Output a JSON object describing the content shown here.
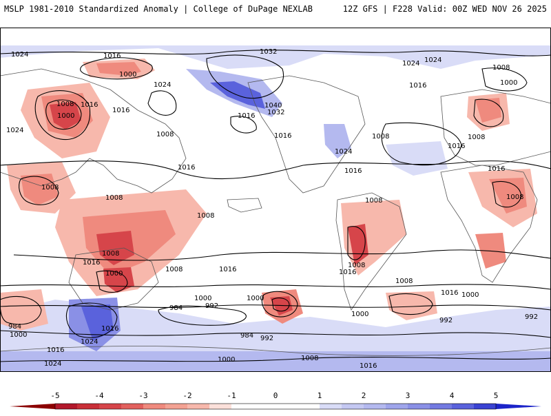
{
  "header": {
    "title": "MSLP 1981-2010 Standardized Anomaly | College of DuPage NEXLAB",
    "run_info": "12Z GFS | F228 Valid: 00Z WED NOV 26 2025"
  },
  "colors": {
    "neg5": "#b2182b",
    "neg4": "#d6454a",
    "neg3": "#ef8a7e",
    "neg2": "#f7b8ac",
    "neg1": "#fbe0da",
    "neutral": "#ffffff",
    "pos1": "#d9dcf7",
    "pos2": "#b4b9ef",
    "pos3": "#8a90e6",
    "pos4": "#5a62dc",
    "pos5": "#1c24c9",
    "contour": "#000000",
    "coast": "#555555"
  },
  "colorbar": {
    "ticks": [
      "-5",
      "-4",
      "-3",
      "-2",
      "-1",
      "0",
      "1",
      "2",
      "3",
      "4",
      "5"
    ]
  },
  "isobar_labels": [
    "1024",
    "1016",
    "1000",
    "1032",
    "1024",
    "1008",
    "1024",
    "1000",
    "1016",
    "1000",
    "1016",
    "1040",
    "1032",
    "1024",
    "1016",
    "1008",
    "1016",
    "1008",
    "1016",
    "1024",
    "1016",
    "1008",
    "1024",
    "1008",
    "1016",
    "1008",
    "1008",
    "1008",
    "1016",
    "1016",
    "1008",
    "1008",
    "1008",
    "1000",
    "1016",
    "1008",
    "1016",
    "1008",
    "1016",
    "1000",
    "1000",
    "1016",
    "984",
    "992",
    "1000",
    "984",
    "992",
    "1008",
    "992",
    "984",
    "1000",
    "1016",
    "1024",
    "1016",
    "1024",
    "1000",
    "1008",
    "1016",
    "1000",
    "992"
  ]
}
